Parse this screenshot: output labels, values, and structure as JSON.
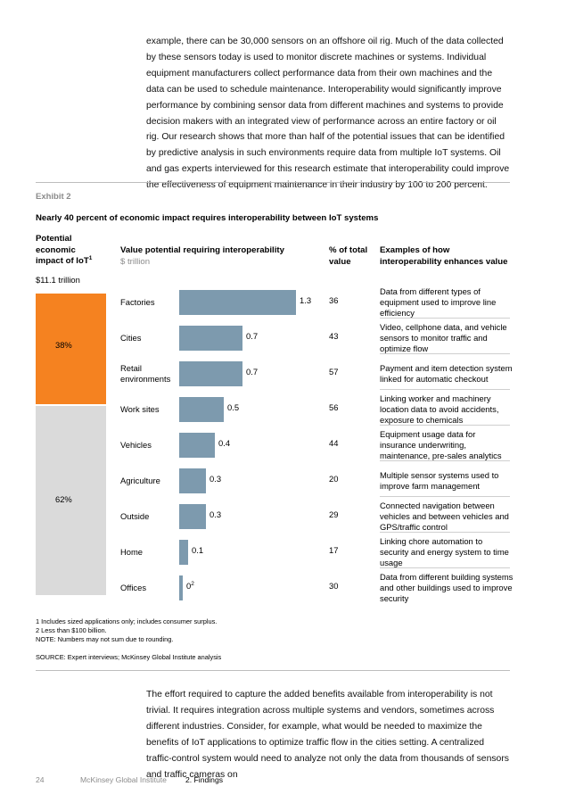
{
  "top_paragraph": "example, there can be 30,000 sensors on an offshore oil rig. Much of the data collected by these sensors today is used to monitor discrete machines or systems. Individual equipment manufacturers collect performance data from their own machines and the data can be used to schedule maintenance. Interoperability would significantly improve performance by combining sensor data from different machines and systems to provide decision makers with an integrated view of performance across an entire factory or oil rig. Our research shows that more than half of the potential issues that can be identified by predictive analysis in such environments require data from multiple IoT systems. Oil and gas experts interviewed for this research estimate that interoperability could improve the effectiveness of equipment maintenance in their industry by 100 to 200 percent.",
  "exhibit": {
    "label": "Exhibit 2",
    "title": "Nearly 40 percent of economic impact requires interoperability between IoT systems",
    "col_impact_line1": "Potential",
    "col_impact_line2": "economic",
    "col_impact_line3": "impact of IoT",
    "col_impact_sup": "1",
    "col_value_title": "Value potential requiring interoperability",
    "col_value_unit": "$ trillion",
    "col_pct_line1": "% of total",
    "col_pct_line2": "value",
    "col_ex_line1": "Examples of how",
    "col_ex_line2": "interoperability enhances value",
    "total": "$11.1 trillion",
    "share_interop": "38%",
    "share_other": "62%",
    "value_sup": "2"
  },
  "chart_data": {
    "type": "bar",
    "orientation": "horizontal",
    "categories": [
      "Factories",
      "Cities",
      "Retail environments",
      "Work sites",
      "Vehicles",
      "Agriculture",
      "Outside",
      "Home",
      "Offices"
    ],
    "values": [
      1.3,
      0.7,
      0.7,
      0.5,
      0.4,
      0.3,
      0.3,
      0.1,
      0
    ],
    "value_labels": [
      "1.3",
      "0.7",
      "0.7",
      "0.5",
      "0.4",
      "0.3",
      "0.3",
      "0.1",
      "0"
    ],
    "pct_of_total": [
      "36",
      "43",
      "57",
      "56",
      "44",
      "20",
      "29",
      "17",
      "30"
    ],
    "examples": [
      "Data from different types of equipment used to improve line efficiency",
      "Video, cellphone data, and vehicle sensors to monitor traffic and optimize flow",
      "Payment and item detection system linked for automatic checkout",
      "Linking worker and machinery location data to avoid accidents, exposure to chemicals",
      "Equipment usage data for insurance underwriting, maintenance, pre-sales analytics",
      "Multiple sensor systems used to improve farm management",
      "Connected navigation between vehicles and between vehicles and GPS/traffic control",
      "Linking chore automation to security and energy system to time usage",
      "Data from different building systems and other buildings used to improve security"
    ],
    "stacked_share": {
      "interoperability": 38,
      "other": 62
    },
    "colors": {
      "bar": "#7d9aae",
      "interop": "#f58220",
      "other": "#dadada"
    }
  },
  "footnotes": {
    "n1": "1   Includes sized applications only; includes consumer surplus.",
    "n2": "2   Less than $100 billion.",
    "note": "NOTE: Numbers may not sum due to rounding.",
    "source": "SOURCE:  Expert interviews; McKinsey Global Institute analysis"
  },
  "bottom_paragraph": "The effort required to capture the added benefits available from interoperability is not trivial. It requires integration across multiple systems and vendors, sometimes across different industries. Consider, for example, what would be needed to maximize the benefits of IoT applications to optimize traffic flow in the cities setting. A centralized traffic-control system would need to analyze not only the data from thousands of sensors and traffic cameras on",
  "footer": {
    "page_number": "24",
    "org": "McKinsey Global Institute",
    "section": "2. Findings"
  }
}
